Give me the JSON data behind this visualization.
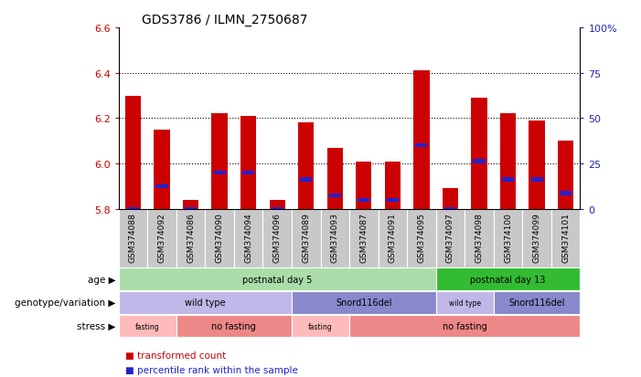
{
  "title": "GDS3786 / ILMN_2750687",
  "samples": [
    "GSM374088",
    "GSM374092",
    "GSM374086",
    "GSM374090",
    "GSM374094",
    "GSM374096",
    "GSM374089",
    "GSM374093",
    "GSM374087",
    "GSM374091",
    "GSM374095",
    "GSM374097",
    "GSM374098",
    "GSM374100",
    "GSM374099",
    "GSM374101"
  ],
  "bar_base": 5.8,
  "red_values": [
    6.3,
    6.15,
    5.84,
    6.22,
    6.21,
    5.84,
    6.18,
    6.07,
    6.01,
    6.01,
    6.41,
    5.89,
    6.29,
    6.22,
    6.19,
    6.1
  ],
  "blue_values": [
    5.8,
    5.9,
    5.8,
    5.96,
    5.96,
    5.8,
    5.93,
    5.86,
    5.84,
    5.84,
    6.08,
    5.8,
    6.01,
    5.93,
    5.93,
    5.87
  ],
  "ylim": [
    5.8,
    6.6
  ],
  "yticks_left": [
    5.8,
    6.0,
    6.2,
    6.4,
    6.6
  ],
  "yticks_right_vals": [
    0,
    25,
    50,
    75,
    100
  ],
  "yticks_right_labels": [
    "0",
    "25",
    "50",
    "75",
    "100%"
  ],
  "gridlines": [
    6.0,
    6.2,
    6.4
  ],
  "bar_color_red": "#cc0000",
  "bar_color_blue": "#2222cc",
  "bar_width": 0.55,
  "annotation_rows": [
    {
      "label": "age",
      "segments": [
        {
          "span": [
            0,
            11
          ],
          "text": "postnatal day 5",
          "color": "#aaddaa"
        },
        {
          "span": [
            11,
            16
          ],
          "text": "postnatal day 13",
          "color": "#33bb33"
        }
      ]
    },
    {
      "label": "genotype/variation",
      "segments": [
        {
          "span": [
            0,
            6
          ],
          "text": "wild type",
          "color": "#c0b8e8"
        },
        {
          "span": [
            6,
            11
          ],
          "text": "Snord116del",
          "color": "#8888cc"
        },
        {
          "span": [
            11,
            13
          ],
          "text": "wild type",
          "color": "#c0b8e8"
        },
        {
          "span": [
            13,
            16
          ],
          "text": "Snord116del",
          "color": "#8888cc"
        }
      ]
    },
    {
      "label": "stress",
      "segments": [
        {
          "span": [
            0,
            2
          ],
          "text": "fasting",
          "color": "#ffbbbb"
        },
        {
          "span": [
            2,
            6
          ],
          "text": "no fasting",
          "color": "#ee8888"
        },
        {
          "span": [
            6,
            8
          ],
          "text": "fasting",
          "color": "#ffbbbb"
        },
        {
          "span": [
            8,
            16
          ],
          "text": "no fasting",
          "color": "#ee8888"
        }
      ]
    }
  ],
  "legend_items": [
    {
      "label": "transformed count",
      "color": "#cc0000"
    },
    {
      "label": "percentile rank within the sample",
      "color": "#2222cc"
    }
  ],
  "left_tick_color": "#cc0000",
  "right_tick_color": "#2222bb",
  "label_arrow_color": "#888888",
  "xlabel_bg_color": "#c8c8c8"
}
